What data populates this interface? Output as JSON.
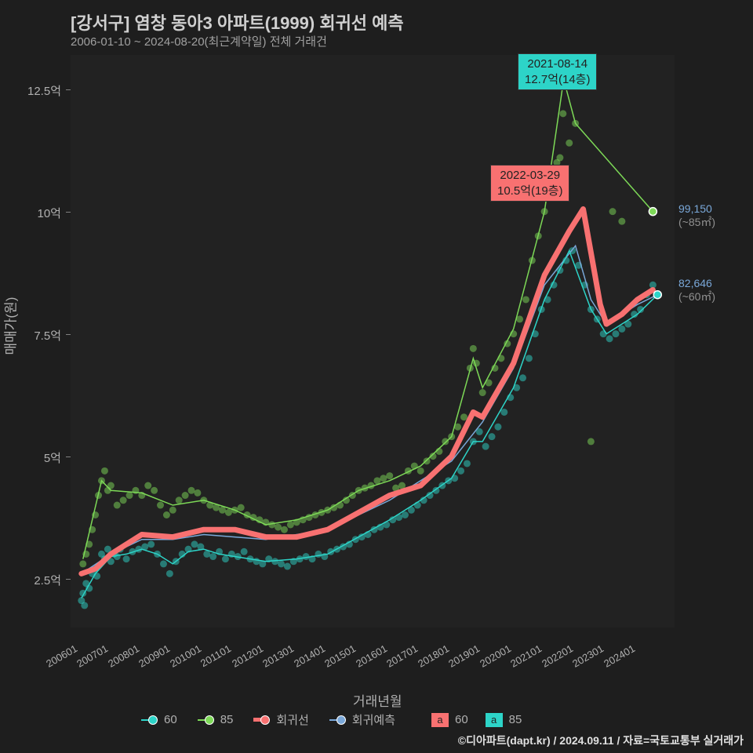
{
  "chart": {
    "title": "[강서구] 염창 동아3 아파트(1999) 회귀선 예측",
    "subtitle": "2006-01-10 ~ 2024-08-20(최근계약일) 전체 거래건",
    "ylabel": "매매가(원)",
    "xlabel": "거래년월",
    "background_color": "#1e1e1e",
    "plot_bg": "#222222",
    "text_color": "#b0b0b0",
    "y_ticks": [
      {
        "value": 2.5,
        "label": "2.5억"
      },
      {
        "value": 5.0,
        "label": "5억"
      },
      {
        "value": 7.5,
        "label": "7.5억"
      },
      {
        "value": 10.0,
        "label": "10억"
      },
      {
        "value": 12.5,
        "label": "12.5억"
      }
    ],
    "ylim": [
      1.5,
      13.2
    ],
    "x_ticks": [
      "200601",
      "200701",
      "200801",
      "200901",
      "201001",
      "201101",
      "201201",
      "201301",
      "201401",
      "201501",
      "201601",
      "201701",
      "201801",
      "201901",
      "202001",
      "202101",
      "202201",
      "202301",
      "202401"
    ],
    "xlim": [
      2005.7,
      2025.2
    ],
    "colors": {
      "series60": "#2dd4c8",
      "series85": "#7dd957",
      "regression": "#f87171",
      "reg_predict": "#7aa8d9"
    },
    "annotations": {
      "peak85": {
        "date": "2021-08-14",
        "value": "12.7억(14층)"
      },
      "peakReg": {
        "date": "2022-03-29",
        "value": "10.5억(19층)"
      }
    },
    "end_labels": {
      "e85": {
        "value": "99,150",
        "unit": "(~85㎡)"
      },
      "e60": {
        "value": "82,646",
        "unit": "(~60㎡)"
      }
    },
    "legend": {
      "s60": "60",
      "s85": "85",
      "reg": "회귀선",
      "pred": "회귀예측",
      "box60": "60",
      "box85": "85"
    },
    "copyright": "©디아파트(dapt.kr) / 2024.09.11 / 자료=국토교통부 실거래가",
    "scatter60": [
      [
        2006.05,
        2.05
      ],
      [
        2006.1,
        2.2
      ],
      [
        2006.15,
        1.95
      ],
      [
        2006.2,
        2.4
      ],
      [
        2006.3,
        2.3
      ],
      [
        2006.4,
        2.6
      ],
      [
        2006.5,
        2.7
      ],
      [
        2006.55,
        2.55
      ],
      [
        2006.7,
        3.0
      ],
      [
        2006.8,
        2.9
      ],
      [
        2006.9,
        3.1
      ],
      [
        2007.0,
        2.85
      ],
      [
        2007.1,
        3.0
      ],
      [
        2007.2,
        2.95
      ],
      [
        2007.3,
        3.1
      ],
      [
        2007.5,
        2.9
      ],
      [
        2007.7,
        3.05
      ],
      [
        2007.9,
        3.1
      ],
      [
        2008.1,
        3.15
      ],
      [
        2008.3,
        3.2
      ],
      [
        2008.5,
        3.0
      ],
      [
        2008.7,
        2.8
      ],
      [
        2008.9,
        2.6
      ],
      [
        2009.1,
        2.85
      ],
      [
        2009.3,
        3.0
      ],
      [
        2009.5,
        3.1
      ],
      [
        2009.7,
        3.2
      ],
      [
        2009.9,
        3.15
      ],
      [
        2010.1,
        3.0
      ],
      [
        2010.3,
        2.95
      ],
      [
        2010.5,
        3.05
      ],
      [
        2010.7,
        2.9
      ],
      [
        2010.9,
        3.0
      ],
      [
        2011.1,
        2.95
      ],
      [
        2011.3,
        3.05
      ],
      [
        2011.5,
        2.9
      ],
      [
        2011.7,
        2.85
      ],
      [
        2011.9,
        2.8
      ],
      [
        2012.1,
        2.9
      ],
      [
        2012.3,
        2.85
      ],
      [
        2012.5,
        2.8
      ],
      [
        2012.7,
        2.75
      ],
      [
        2012.9,
        2.85
      ],
      [
        2013.1,
        2.9
      ],
      [
        2013.3,
        2.95
      ],
      [
        2013.5,
        2.9
      ],
      [
        2013.7,
        3.0
      ],
      [
        2013.9,
        2.95
      ],
      [
        2014.1,
        3.05
      ],
      [
        2014.3,
        3.1
      ],
      [
        2014.5,
        3.15
      ],
      [
        2014.7,
        3.2
      ],
      [
        2014.9,
        3.3
      ],
      [
        2015.1,
        3.35
      ],
      [
        2015.3,
        3.4
      ],
      [
        2015.5,
        3.5
      ],
      [
        2015.7,
        3.55
      ],
      [
        2015.9,
        3.6
      ],
      [
        2016.1,
        3.7
      ],
      [
        2016.3,
        3.75
      ],
      [
        2016.5,
        3.8
      ],
      [
        2016.7,
        3.9
      ],
      [
        2016.9,
        4.0
      ],
      [
        2017.1,
        4.1
      ],
      [
        2017.3,
        4.2
      ],
      [
        2017.5,
        4.3
      ],
      [
        2017.7,
        4.4
      ],
      [
        2017.9,
        4.5
      ],
      [
        2018.1,
        4.55
      ],
      [
        2018.3,
        4.7
      ],
      [
        2018.5,
        4.85
      ],
      [
        2018.7,
        5.3
      ],
      [
        2018.9,
        5.5
      ],
      [
        2019.1,
        5.2
      ],
      [
        2019.3,
        5.4
      ],
      [
        2019.5,
        5.6
      ],
      [
        2019.7,
        5.9
      ],
      [
        2019.9,
        6.2
      ],
      [
        2020.1,
        6.4
      ],
      [
        2020.3,
        6.6
      ],
      [
        2020.5,
        7.0
      ],
      [
        2020.7,
        7.5
      ],
      [
        2020.9,
        8.0
      ],
      [
        2021.1,
        8.2
      ],
      [
        2021.3,
        8.5
      ],
      [
        2021.5,
        8.8
      ],
      [
        2021.7,
        9.0
      ],
      [
        2021.9,
        9.2
      ],
      [
        2022.1,
        8.9
      ],
      [
        2022.3,
        8.5
      ],
      [
        2022.5,
        8.0
      ],
      [
        2022.7,
        7.8
      ],
      [
        2022.9,
        7.5
      ],
      [
        2023.1,
        7.4
      ],
      [
        2023.3,
        7.5
      ],
      [
        2023.5,
        7.6
      ],
      [
        2023.7,
        7.7
      ],
      [
        2023.9,
        7.9
      ],
      [
        2024.1,
        8.0
      ],
      [
        2024.3,
        8.3
      ],
      [
        2024.5,
        8.5
      ],
      [
        2024.65,
        8.3
      ]
    ],
    "scatter85": [
      [
        2006.1,
        2.8
      ],
      [
        2006.2,
        3.0
      ],
      [
        2006.3,
        3.2
      ],
      [
        2006.4,
        3.5
      ],
      [
        2006.5,
        3.8
      ],
      [
        2006.6,
        4.2
      ],
      [
        2006.7,
        4.5
      ],
      [
        2006.8,
        4.7
      ],
      [
        2006.9,
        4.3
      ],
      [
        2007.0,
        4.4
      ],
      [
        2007.2,
        4.0
      ],
      [
        2007.4,
        4.1
      ],
      [
        2007.6,
        4.2
      ],
      [
        2007.8,
        4.3
      ],
      [
        2008.0,
        4.2
      ],
      [
        2008.2,
        4.4
      ],
      [
        2008.4,
        4.3
      ],
      [
        2008.6,
        4.0
      ],
      [
        2008.8,
        3.8
      ],
      [
        2009.0,
        3.9
      ],
      [
        2009.2,
        4.1
      ],
      [
        2009.4,
        4.2
      ],
      [
        2009.6,
        4.3
      ],
      [
        2009.8,
        4.25
      ],
      [
        2010.0,
        4.1
      ],
      [
        2010.2,
        4.0
      ],
      [
        2010.4,
        3.95
      ],
      [
        2010.6,
        3.9
      ],
      [
        2010.8,
        3.85
      ],
      [
        2011.0,
        3.9
      ],
      [
        2011.2,
        3.95
      ],
      [
        2011.4,
        3.8
      ],
      [
        2011.6,
        3.75
      ],
      [
        2011.8,
        3.7
      ],
      [
        2012.0,
        3.65
      ],
      [
        2012.2,
        3.6
      ],
      [
        2012.4,
        3.55
      ],
      [
        2012.6,
        3.5
      ],
      [
        2012.8,
        3.6
      ],
      [
        2013.0,
        3.65
      ],
      [
        2013.2,
        3.7
      ],
      [
        2013.4,
        3.75
      ],
      [
        2013.6,
        3.8
      ],
      [
        2013.8,
        3.85
      ],
      [
        2014.0,
        3.9
      ],
      [
        2014.2,
        3.95
      ],
      [
        2014.4,
        4.0
      ],
      [
        2014.6,
        4.1
      ],
      [
        2014.8,
        4.2
      ],
      [
        2015.0,
        4.3
      ],
      [
        2015.2,
        4.35
      ],
      [
        2015.4,
        4.4
      ],
      [
        2015.6,
        4.5
      ],
      [
        2015.8,
        4.55
      ],
      [
        2016.0,
        4.6
      ],
      [
        2016.2,
        4.35
      ],
      [
        2016.4,
        4.4
      ],
      [
        2016.6,
        4.7
      ],
      [
        2016.8,
        4.8
      ],
      [
        2017.0,
        4.7
      ],
      [
        2017.2,
        4.9
      ],
      [
        2017.4,
        5.0
      ],
      [
        2017.6,
        5.1
      ],
      [
        2017.8,
        5.3
      ],
      [
        2018.0,
        5.4
      ],
      [
        2018.2,
        5.6
      ],
      [
        2018.4,
        5.8
      ],
      [
        2018.6,
        6.8
      ],
      [
        2018.7,
        7.2
      ],
      [
        2018.8,
        6.9
      ],
      [
        2019.0,
        6.3
      ],
      [
        2019.2,
        6.5
      ],
      [
        2019.4,
        6.8
      ],
      [
        2019.6,
        7.0
      ],
      [
        2019.8,
        7.3
      ],
      [
        2020.0,
        7.5
      ],
      [
        2020.2,
        7.8
      ],
      [
        2020.4,
        8.2
      ],
      [
        2020.6,
        9.0
      ],
      [
        2020.8,
        9.5
      ],
      [
        2021.0,
        10.0
      ],
      [
        2021.2,
        10.5
      ],
      [
        2021.4,
        11.0
      ],
      [
        2021.5,
        11.1
      ],
      [
        2021.6,
        12.0
      ],
      [
        2021.62,
        12.7
      ],
      [
        2021.8,
        11.4
      ],
      [
        2022.0,
        11.8
      ],
      [
        2022.5,
        5.3
      ],
      [
        2023.2,
        10.0
      ],
      [
        2023.5,
        9.8
      ],
      [
        2024.5,
        10.0
      ]
    ],
    "line60": [
      [
        2006.05,
        2.1
      ],
      [
        2006.5,
        2.6
      ],
      [
        2007.0,
        2.95
      ],
      [
        2007.5,
        3.0
      ],
      [
        2008.0,
        3.1
      ],
      [
        2008.5,
        3.0
      ],
      [
        2009.0,
        2.8
      ],
      [
        2009.5,
        3.05
      ],
      [
        2010.0,
        3.1
      ],
      [
        2010.5,
        3.0
      ],
      [
        2011.0,
        2.95
      ],
      [
        2012.0,
        2.85
      ],
      [
        2013.0,
        2.9
      ],
      [
        2014.0,
        3.0
      ],
      [
        2015.0,
        3.35
      ],
      [
        2016.0,
        3.7
      ],
      [
        2017.0,
        4.1
      ],
      [
        2018.0,
        4.55
      ],
      [
        2018.7,
        5.3
      ],
      [
        2019.0,
        5.3
      ],
      [
        2020.0,
        6.4
      ],
      [
        2021.0,
        8.2
      ],
      [
        2021.8,
        9.2
      ],
      [
        2022.5,
        8.0
      ],
      [
        2023.0,
        7.5
      ],
      [
        2024.0,
        7.9
      ],
      [
        2024.65,
        8.3
      ]
    ],
    "line85": [
      [
        2006.1,
        2.9
      ],
      [
        2006.7,
        4.5
      ],
      [
        2007.0,
        4.3
      ],
      [
        2008.0,
        4.25
      ],
      [
        2009.0,
        4.0
      ],
      [
        2010.0,
        4.1
      ],
      [
        2011.0,
        3.9
      ],
      [
        2012.0,
        3.6
      ],
      [
        2013.0,
        3.7
      ],
      [
        2014.0,
        3.9
      ],
      [
        2015.0,
        4.3
      ],
      [
        2016.0,
        4.5
      ],
      [
        2017.0,
        4.8
      ],
      [
        2018.0,
        5.4
      ],
      [
        2018.7,
        7.0
      ],
      [
        2019.0,
        6.4
      ],
      [
        2020.0,
        7.6
      ],
      [
        2021.0,
        10.0
      ],
      [
        2021.62,
        12.7
      ],
      [
        2022.0,
        11.8
      ],
      [
        2024.5,
        10.0
      ]
    ],
    "regression": [
      [
        2006.05,
        2.6
      ],
      [
        2006.5,
        2.7
      ],
      [
        2007.0,
        3.0
      ],
      [
        2008.0,
        3.4
      ],
      [
        2009.0,
        3.35
      ],
      [
        2010.0,
        3.5
      ],
      [
        2011.0,
        3.5
      ],
      [
        2012.0,
        3.35
      ],
      [
        2013.0,
        3.35
      ],
      [
        2014.0,
        3.5
      ],
      [
        2015.0,
        3.85
      ],
      [
        2016.0,
        4.2
      ],
      [
        2017.0,
        4.4
      ],
      [
        2018.0,
        5.0
      ],
      [
        2018.7,
        5.9
      ],
      [
        2019.0,
        5.8
      ],
      [
        2020.0,
        6.9
      ],
      [
        2021.0,
        8.7
      ],
      [
        2021.8,
        9.6
      ],
      [
        2022.25,
        10.05
      ],
      [
        2022.8,
        8.1
      ],
      [
        2023.0,
        7.7
      ],
      [
        2023.5,
        7.9
      ],
      [
        2024.0,
        8.2
      ],
      [
        2024.5,
        8.4
      ]
    ],
    "predict": [
      [
        2006.05,
        2.6
      ],
      [
        2007.0,
        3.0
      ],
      [
        2008.0,
        3.3
      ],
      [
        2009.0,
        3.3
      ],
      [
        2010.0,
        3.4
      ],
      [
        2012.0,
        3.3
      ],
      [
        2014.0,
        3.5
      ],
      [
        2016.0,
        4.1
      ],
      [
        2018.0,
        4.9
      ],
      [
        2019.0,
        5.7
      ],
      [
        2020.0,
        6.8
      ],
      [
        2021.0,
        8.5
      ],
      [
        2022.0,
        9.3
      ],
      [
        2022.5,
        8.2
      ],
      [
        2023.0,
        7.7
      ],
      [
        2024.0,
        8.1
      ],
      [
        2024.65,
        8.3
      ]
    ]
  }
}
